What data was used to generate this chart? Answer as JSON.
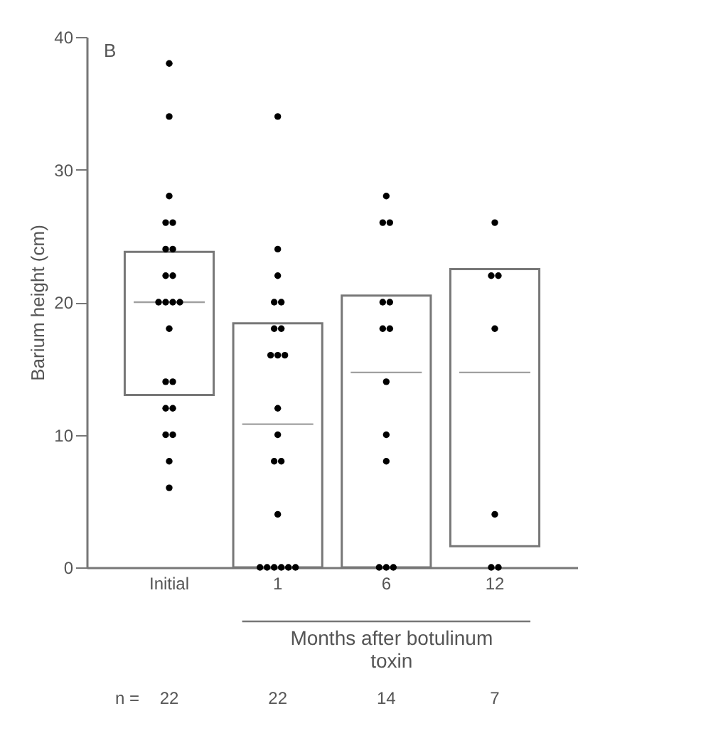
{
  "chart_data": {
    "type": "box",
    "ylabel": "Barium height (cm)",
    "xlabel": "Months after botulinum toxin",
    "categories": [
      "Initial",
      "1",
      "6",
      "12"
    ],
    "boxes": [
      {
        "low": 13,
        "q1": 13,
        "median": 20,
        "q3": 23.8,
        "high": 23.8
      },
      {
        "low": 0,
        "q1": 0,
        "median": 10.8,
        "q3": 18.4,
        "high": 18.4
      },
      {
        "low": 0,
        "q1": 0,
        "median": 14.7,
        "q3": 20.5,
        "high": 20.5
      },
      {
        "low": 1.6,
        "q1": 1.6,
        "median": 14.7,
        "q3": 22.5,
        "high": 22.5
      }
    ],
    "series": [
      {
        "type": "scatter",
        "color": "#000000",
        "x": [
          "Initial",
          "Initial",
          "Initial",
          "Initial",
          "Initial",
          "Initial",
          "Initial",
          "Initial",
          "Initial",
          "Initial",
          "Initial",
          "Initial",
          "Initial",
          "Initial",
          "Initial",
          "Initial",
          "Initial",
          "Initial",
          "Initial",
          "Initial",
          "Initial",
          "Initial",
          "1",
          "1",
          "1",
          "1",
          "1",
          "1",
          "1",
          "1",
          "1",
          "1",
          "1",
          "1",
          "1",
          "1",
          "1",
          "1",
          "1",
          "1",
          "1",
          "1",
          "1",
          "6",
          "6",
          "6",
          "6",
          "6",
          "6",
          "6",
          "6",
          "6",
          "6",
          "6",
          "6",
          "6",
          "12",
          "12",
          "12",
          "12",
          "12",
          "12",
          "12"
        ],
        "values": [
          38,
          34,
          28,
          26,
          26,
          24,
          24,
          22,
          22,
          20,
          20,
          20,
          20,
          18,
          14,
          14,
          12,
          12,
          10,
          10,
          8,
          6,
          34,
          24,
          22,
          20,
          20,
          18,
          18,
          16,
          16,
          16,
          12,
          10,
          8,
          8,
          4,
          0,
          0,
          0,
          0,
          0,
          0,
          28,
          26,
          26,
          20,
          20,
          18,
          18,
          14,
          10,
          8,
          0,
          0,
          0,
          26,
          22,
          22,
          18,
          4,
          0,
          0
        ]
      }
    ],
    "ylim": [
      0,
      40
    ],
    "yticks": [
      0,
      10,
      20,
      30,
      40
    ],
    "annotations": [
      "B",
      "n =",
      "22",
      "22",
      "14",
      "7"
    ]
  }
}
